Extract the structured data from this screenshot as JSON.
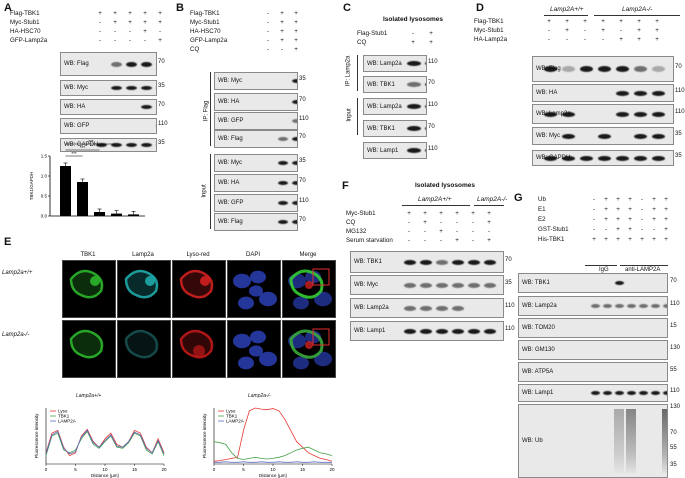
{
  "panels": {
    "A": {
      "label": "A",
      "conditions": [
        {
          "name": "Flag-TBK1",
          "signs": [
            "+",
            "+",
            "+",
            "+",
            "+"
          ]
        },
        {
          "name": "Myc-Stub1",
          "signs": [
            "-",
            "+",
            "+",
            "+",
            "+"
          ]
        },
        {
          "name": "HA-HSC70",
          "signs": [
            "-",
            "-",
            "-",
            "+",
            "-"
          ]
        },
        {
          "name": "GFP-Lamp2a",
          "signs": [
            "-",
            "-",
            "-",
            "-",
            "+"
          ]
        }
      ],
      "blots": [
        {
          "label": "WB: Flag",
          "mw": "70"
        },
        {
          "label": "WB: Myc",
          "mw": "35"
        },
        {
          "label": "WB: HA",
          "mw": "70"
        },
        {
          "label": "WB: GFP",
          "mw": "110"
        },
        {
          "label": "WB: GAPDH",
          "mw": "35"
        }
      ],
      "significance": [
        "***",
        "***",
        "***"
      ]
    },
    "B": {
      "label": "B",
      "conditions": [
        {
          "name": "Flag-TBK1",
          "signs": [
            "-",
            "+",
            "+"
          ]
        },
        {
          "name": "Myc-Stub1",
          "signs": [
            "-",
            "+",
            "+"
          ]
        },
        {
          "name": "HA-HSC70",
          "signs": [
            "-",
            "+",
            "+"
          ]
        },
        {
          "name": "GFP-Lamp2a",
          "signs": [
            "-",
            "+",
            "+"
          ]
        },
        {
          "name": "CQ",
          "signs": [
            "-",
            "-",
            "+"
          ]
        }
      ],
      "ip_label": "IP: Flag",
      "input_label": "Input",
      "ip_blots": [
        {
          "label": "WB: Myc",
          "mw": "35"
        },
        {
          "label": "WB: HA",
          "mw": "70"
        },
        {
          "label": "WB: GFP",
          "mw": "110"
        },
        {
          "label": "WB: Flag",
          "mw": "70"
        }
      ],
      "input_blots": [
        {
          "label": "WB: Myc",
          "mw": "35"
        },
        {
          "label": "WB: HA",
          "mw": "70"
        },
        {
          "label": "WB: GFP",
          "mw": "110"
        },
        {
          "label": "WB: Flag",
          "mw": "70"
        }
      ]
    },
    "C": {
      "label": "C",
      "title": "Isolated lysosomes",
      "conditions": [
        {
          "name": "Flag-Stub1",
          "signs": [
            "-",
            "+"
          ]
        },
        {
          "name": "CQ",
          "signs": [
            "+",
            "+"
          ]
        }
      ],
      "ip_label": "IP: Lamp2a",
      "input_label": "Input",
      "blots": [
        {
          "label": "WB: Lamp2a",
          "mw": "110"
        },
        {
          "label": "WB: TBK1",
          "mw": "70"
        },
        {
          "label": "WB: Lamp2a",
          "mw": "110"
        },
        {
          "label": "WB: TBK1",
          "mw": "70"
        },
        {
          "label": "WB: Lamp1",
          "mw": "110"
        }
      ]
    },
    "D": {
      "label": "D",
      "group_left": "Lamp2A+/+",
      "group_right": "Lamp2A-/-",
      "conditions": [
        {
          "name": "Flag-TBK1",
          "signs": [
            "+",
            "+",
            "+",
            "+",
            "+",
            "+",
            "+"
          ]
        },
        {
          "name": "Myc-Stub1",
          "signs": [
            "-",
            "+",
            "-",
            "+",
            "-",
            "+",
            "+"
          ]
        },
        {
          "name": "HA-Lamp2a",
          "signs": [
            "-",
            "-",
            "-",
            "-",
            "+",
            "+",
            "+"
          ]
        }
      ],
      "blots": [
        {
          "label": "WB: Flag",
          "mw": "70"
        },
        {
          "label": "WB: HA",
          "mw": "110"
        },
        {
          "label": "WB: Lamp2a",
          "mw": "110"
        },
        {
          "label": "WB: Myc",
          "mw": "35"
        },
        {
          "label": "WB: GAPDH",
          "mw": "35"
        }
      ]
    },
    "E": {
      "label": "E",
      "columns": [
        "TBK1",
        "Lamp2a",
        "Lyso-red",
        "DAPI",
        "Merge"
      ],
      "rows": [
        "Lamp2a+/+",
        "Lamp2a-/-"
      ],
      "plot_left_title": "Lamp2a+/+",
      "plot_right_title": "Lamp2a-/-"
    },
    "F": {
      "label": "F",
      "title": "Isolated lysosomes",
      "group_left": "Lamp2A+/+",
      "group_right": "Lamp2A-/-",
      "conditions": [
        {
          "name": "Myc-Stub1",
          "signs": [
            "+",
            "+",
            "+",
            "+",
            "+",
            "+"
          ]
        },
        {
          "name": "CQ",
          "signs": [
            "-",
            "+",
            "-",
            "-",
            "-",
            "+"
          ]
        },
        {
          "name": "MG132",
          "signs": [
            "-",
            "-",
            "+",
            "-",
            "-",
            "-"
          ]
        },
        {
          "name": "Serum starvation",
          "signs": [
            "-",
            "-",
            "-",
            "+",
            "-",
            "+"
          ]
        }
      ],
      "blots": [
        {
          "label": "WB: TBK1",
          "mw": "70"
        },
        {
          "label": "WB: Myc",
          "mw": "35"
        },
        {
          "label": "WB: Lamp2a",
          "mw": "110"
        },
        {
          "label": "WB: Lamp1",
          "mw": "110"
        }
      ]
    },
    "G": {
      "label": "G",
      "conditions": [
        {
          "name": "Ub",
          "signs": [
            "-",
            "+",
            "+",
            "+",
            "-",
            "+",
            "+"
          ]
        },
        {
          "name": "E1",
          "signs": [
            "-",
            "+",
            "+",
            "+",
            "-",
            "+",
            "+"
          ]
        },
        {
          "name": "E2",
          "signs": [
            "-",
            "+",
            "+",
            "+",
            "-",
            "+",
            "+"
          ]
        },
        {
          "name": "GST-Stub1",
          "signs": [
            "-",
            "-",
            "+",
            "+",
            "-",
            "-",
            "+"
          ]
        },
        {
          "name": "His-TBK1",
          "signs": [
            "+",
            "+",
            "+",
            "+",
            "+",
            "+",
            "+"
          ]
        }
      ],
      "ip_left": "IgG",
      "ip_right": "anti-LAMP2A",
      "blots": [
        {
          "label": "WB: TBK1",
          "mw": "70"
        },
        {
          "label": "WB: Lamp2a",
          "mw": "110"
        },
        {
          "label": "WB: TOM20",
          "mw": "15"
        },
        {
          "label": "WB: GM130",
          "mw": "130"
        },
        {
          "label": "WB: ATP5A",
          "mw": "55"
        },
        {
          "label": "WB: Lamp1",
          "mw": "110"
        }
      ],
      "ub": {
        "label": "WB: Ub",
        "mw": [
          "130",
          "70",
          "55",
          "35"
        ]
      }
    }
  },
  "chart_data": [
    {
      "type": "bar",
      "ylabel": "TBK1/GAPDH",
      "categories": [
        "1",
        "2",
        "3",
        "4",
        "5"
      ],
      "values": [
        1.25,
        0.85,
        0.1,
        0.06,
        0.04
      ],
      "ylim": [
        0,
        1.5
      ],
      "yticks": [
        "0.0",
        "0.5",
        "1.0",
        "1.5"
      ]
    },
    {
      "type": "line",
      "title": "Lamp2a+/+",
      "xlabel": "Distance (µm)",
      "ylabel": "Fluorescence intensity",
      "xlim": [
        0,
        20
      ],
      "series": [
        {
          "name": "Lyso",
          "color": "#e53935",
          "x": [
            0,
            1,
            2,
            3,
            4,
            5,
            6,
            7,
            8,
            9,
            10,
            11,
            12,
            13,
            14,
            15,
            16,
            17,
            18,
            19,
            20
          ],
          "y": [
            20,
            55,
            60,
            30,
            15,
            20,
            50,
            62,
            40,
            30,
            45,
            55,
            35,
            30,
            40,
            60,
            55,
            30,
            20,
            45,
            20
          ]
        },
        {
          "name": "TBK1",
          "color": "#43a047",
          "x": [
            0,
            1,
            2,
            3,
            4,
            5,
            6,
            7,
            8,
            9,
            10,
            11,
            12,
            13,
            14,
            15,
            16,
            17,
            18,
            19,
            20
          ],
          "y": [
            15,
            50,
            55,
            25,
            20,
            25,
            45,
            58,
            35,
            28,
            40,
            50,
            30,
            28,
            38,
            55,
            50,
            25,
            18,
            40,
            15
          ]
        },
        {
          "name": "LAMP2A",
          "color": "#5c6bc0",
          "x": [
            0,
            1,
            2,
            3,
            4,
            5,
            6,
            7,
            8,
            9,
            10,
            11,
            12,
            13,
            14,
            15,
            16,
            17,
            18,
            19,
            20
          ],
          "y": [
            18,
            52,
            58,
            28,
            18,
            22,
            48,
            60,
            38,
            30,
            42,
            52,
            32,
            30,
            40,
            57,
            52,
            28,
            20,
            42,
            18
          ]
        }
      ]
    },
    {
      "type": "line",
      "title": "Lamp2a-/-",
      "xlabel": "Distance (µm)",
      "ylabel": "Fluorescence intensity",
      "xlim": [
        0,
        20
      ],
      "series": [
        {
          "name": "Lyso",
          "color": "#e53935",
          "x": [
            0,
            1,
            2,
            3,
            4,
            5,
            6,
            7,
            8,
            9,
            10,
            11,
            12,
            13,
            14,
            15,
            16,
            17,
            18,
            19,
            20
          ],
          "y": [
            5,
            6,
            8,
            10,
            12,
            60,
            95,
            100,
            98,
            97,
            99,
            95,
            80,
            60,
            40,
            30,
            20,
            15,
            10,
            8,
            5
          ]
        },
        {
          "name": "TBK1",
          "color": "#43a047",
          "x": [
            0,
            1,
            2,
            3,
            4,
            5,
            6,
            7,
            8,
            9,
            10,
            11,
            12,
            13,
            14,
            15,
            16,
            17,
            18,
            19,
            20
          ],
          "y": [
            40,
            38,
            35,
            20,
            10,
            8,
            10,
            12,
            10,
            9,
            10,
            12,
            15,
            20,
            25,
            28,
            30,
            25,
            20,
            18,
            15
          ]
        },
        {
          "name": "LAMP2A",
          "color": "#5c6bc0",
          "x": [
            0,
            1,
            2,
            3,
            4,
            5,
            6,
            7,
            8,
            9,
            10,
            11,
            12,
            13,
            14,
            15,
            16,
            17,
            18,
            19,
            20
          ],
          "y": [
            3,
            3,
            4,
            3,
            3,
            4,
            3,
            3,
            4,
            3,
            3,
            4,
            3,
            3,
            4,
            3,
            3,
            4,
            3,
            3,
            3
          ]
        }
      ]
    }
  ]
}
